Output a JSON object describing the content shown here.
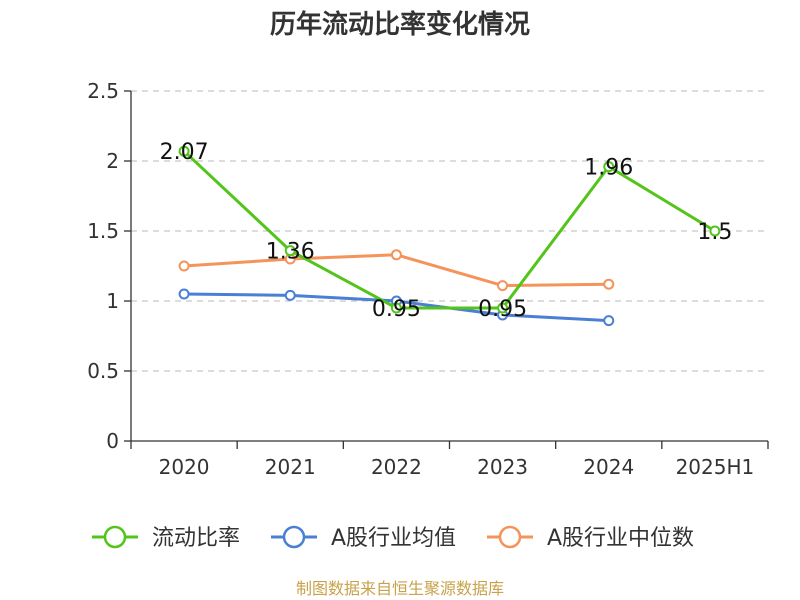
{
  "chart_data": {
    "type": "line",
    "title": "历年流动比率变化情况",
    "categories": [
      "2020",
      "2021",
      "2022",
      "2023",
      "2024",
      "2025H1"
    ],
    "y_ticks": [
      "0",
      "0.5",
      "1",
      "1.5",
      "2",
      "2.5"
    ],
    "ylim": [
      0,
      2.5
    ],
    "grid": true,
    "legend_position": "bottom",
    "series": [
      {
        "name": "流动比率",
        "color": "#52c41a",
        "values": [
          2.07,
          1.36,
          0.95,
          0.95,
          1.96,
          1.5
        ],
        "labels": [
          "2.07",
          "1.36",
          "0.95",
          "0.95",
          "1.96",
          "1.5"
        ]
      },
      {
        "name": "A股行业均值",
        "color": "#4a7fd6",
        "values": [
          1.05,
          1.04,
          1.0,
          0.9,
          0.86,
          null
        ]
      },
      {
        "name": "A股行业中位数",
        "color": "#f4935a",
        "values": [
          1.25,
          1.3,
          1.33,
          1.11,
          1.12,
          null
        ]
      }
    ],
    "source": "制图数据来自恒生聚源数据库"
  }
}
